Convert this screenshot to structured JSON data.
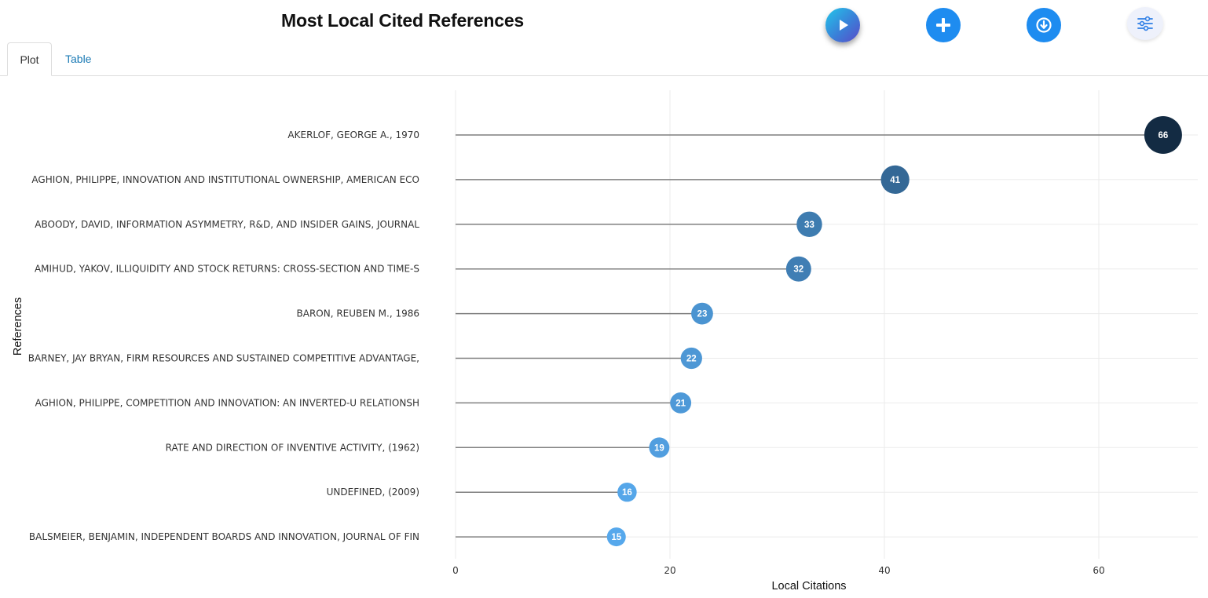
{
  "title": "Most Local Cited References",
  "tabs": {
    "plot": "Plot",
    "table": "Table"
  },
  "toolbar": {
    "play": "play-icon",
    "add": "plus-icon",
    "download": "download-icon",
    "settings": "sliders-icon"
  },
  "colors": {
    "stem": "#7f7f7f",
    "grid": "#ebebeb",
    "dot_low": "#56a8ec",
    "dot_high": "#132b43",
    "accent": "#1e8cf0"
  },
  "chart_data": {
    "type": "lollipop",
    "title": "",
    "xlabel": "Local Citations",
    "ylabel": "References",
    "xlim": [
      0,
      69
    ],
    "xticks": [
      0,
      20,
      40,
      60
    ],
    "grid": true,
    "categories": [
      "AKERLOF, GEORGE A., 1970",
      "AGHION, PHILIPPE, INNOVATION AND INSTITUTIONAL OWNERSHIP, AMERICAN ECO",
      "ABOODY, DAVID, INFORMATION ASYMMETRY, R&D, AND INSIDER GAINS, JOURNAL",
      "AMIHUD, YAKOV, ILLIQUIDITY AND STOCK RETURNS: CROSS-SECTION AND TIME-S",
      "BARON, REUBEN M., 1986",
      "BARNEY, JAY BRYAN, FIRM RESOURCES AND SUSTAINED COMPETITIVE ADVANTAGE,",
      "AGHION, PHILIPPE, COMPETITION AND INNOVATION: AN INVERTED-U RELATIONSH",
      "RATE AND DIRECTION OF INVENTIVE ACTIVITY, (1962)",
      "UNDEFINED, (2009)",
      "BALSMEIER, BENJAMIN, INDEPENDENT BOARDS AND INNOVATION, JOURNAL OF FIN"
    ],
    "values": [
      66,
      41,
      33,
      32,
      23,
      22,
      21,
      19,
      16,
      15
    ]
  }
}
